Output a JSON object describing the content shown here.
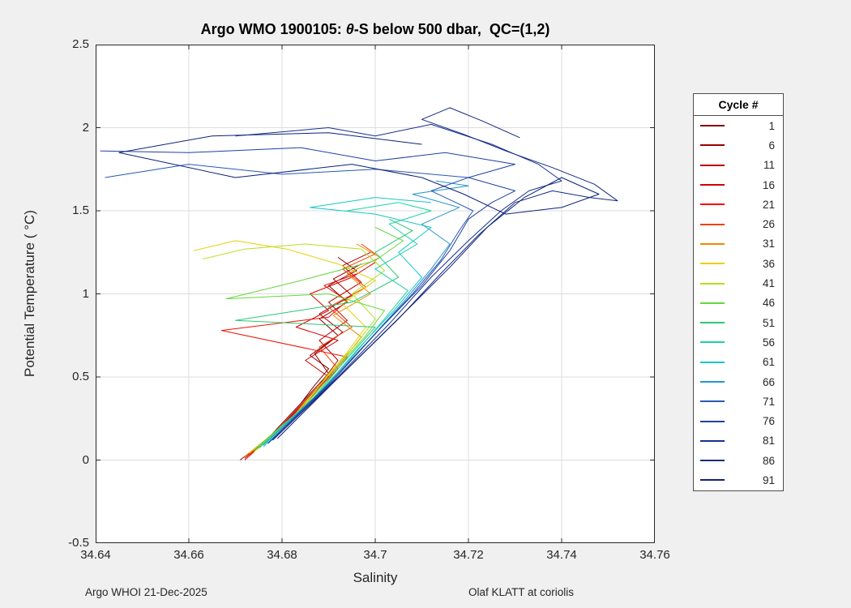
{
  "title": {
    "prefix": "Argo WMO 1900105: ",
    "theta": "θ",
    "suffix": "-S below 500 dbar,  QC=(1,2)"
  },
  "footer": {
    "left": "Argo WHOI 21-Dec-2025",
    "right": "Olaf KLATT at coriolis"
  },
  "chart_data": {
    "type": "line",
    "title": "Argo WMO 1900105: θ-S below 500 dbar,  QC=(1,2)",
    "xlabel": "Salinity",
    "ylabel": "Potential Temperature ( °C)",
    "xlim": [
      34.64,
      34.76
    ],
    "ylim": [
      -0.5,
      2.5
    ],
    "x_ticks": [
      34.64,
      34.66,
      34.68,
      34.7,
      34.72,
      34.74,
      34.76
    ],
    "x_tick_labels": [
      "34.64",
      "34.66",
      "34.68",
      "34.7",
      "34.72",
      "34.74",
      "34.76"
    ],
    "y_ticks": [
      -0.5,
      0,
      0.5,
      1,
      1.5,
      2,
      2.5
    ],
    "y_tick_labels": [
      "-0.5",
      "0",
      "0.5",
      "1",
      "1.5",
      "2",
      "2.5"
    ],
    "grid": true,
    "legend": {
      "title": "Cycle #",
      "position": "right-outside"
    },
    "series": [
      {
        "name": "1",
        "color": "#7f0000",
        "points": [
          [
            34.672,
            0.02
          ],
          [
            34.676,
            0.1
          ],
          [
            34.68,
            0.22
          ],
          [
            34.684,
            0.34
          ],
          [
            34.687,
            0.45
          ],
          [
            34.69,
            0.55
          ],
          [
            34.686,
            0.63
          ],
          [
            34.692,
            0.75
          ],
          [
            34.688,
            0.85
          ],
          [
            34.694,
            0.95
          ],
          [
            34.69,
            1.05
          ],
          [
            34.696,
            1.14
          ],
          [
            34.692,
            1.22
          ]
        ]
      },
      {
        "name": "6",
        "color": "#9b0000",
        "points": [
          [
            34.671,
            0.0
          ],
          [
            34.677,
            0.13
          ],
          [
            34.682,
            0.28
          ],
          [
            34.686,
            0.4
          ],
          [
            34.69,
            0.52
          ],
          [
            34.687,
            0.64
          ],
          [
            34.693,
            0.77
          ],
          [
            34.688,
            0.88
          ],
          [
            34.695,
            0.99
          ],
          [
            34.691,
            1.09
          ],
          [
            34.697,
            1.18
          ]
        ]
      },
      {
        "name": "11",
        "color": "#b70000",
        "points": [
          [
            34.672,
            0.01
          ],
          [
            34.678,
            0.15
          ],
          [
            34.683,
            0.3
          ],
          [
            34.688,
            0.45
          ],
          [
            34.692,
            0.6
          ],
          [
            34.688,
            0.72
          ],
          [
            34.694,
            0.84
          ],
          [
            34.69,
            0.95
          ],
          [
            34.697,
            1.07
          ],
          [
            34.693,
            1.17
          ],
          [
            34.699,
            1.25
          ]
        ]
      },
      {
        "name": "16",
        "color": "#d30000",
        "points": [
          [
            34.672,
            0.02
          ],
          [
            34.679,
            0.18
          ],
          [
            34.685,
            0.35
          ],
          [
            34.69,
            0.5
          ],
          [
            34.685,
            0.6
          ],
          [
            34.692,
            0.72
          ],
          [
            34.683,
            0.8
          ],
          [
            34.69,
            0.9
          ],
          [
            34.686,
            1.0
          ],
          [
            34.695,
            1.1
          ],
          [
            34.7,
            1.19
          ]
        ]
      },
      {
        "name": "21",
        "color": "#ef0f00",
        "points": [
          [
            34.672,
            0.0
          ],
          [
            34.68,
            0.2
          ],
          [
            34.686,
            0.38
          ],
          [
            34.69,
            0.5
          ],
          [
            34.694,
            0.62
          ],
          [
            34.667,
            0.78
          ],
          [
            34.69,
            0.86
          ],
          [
            34.694,
            0.96
          ],
          [
            34.689,
            1.05
          ],
          [
            34.696,
            1.12
          ]
        ]
      },
      {
        "name": "26",
        "color": "#f04000",
        "points": [
          [
            34.673,
            0.03
          ],
          [
            34.681,
            0.22
          ],
          [
            34.687,
            0.4
          ],
          [
            34.692,
            0.55
          ],
          [
            34.688,
            0.68
          ],
          [
            34.695,
            0.8
          ],
          [
            34.69,
            0.92
          ],
          [
            34.698,
            1.04
          ],
          [
            34.693,
            1.15
          ],
          [
            34.7,
            1.24
          ],
          [
            34.697,
            1.3
          ]
        ]
      },
      {
        "name": "31",
        "color": "#ee8a00",
        "points": [
          [
            34.672,
            0.02
          ],
          [
            34.682,
            0.25
          ],
          [
            34.688,
            0.45
          ],
          [
            34.693,
            0.6
          ],
          [
            34.697,
            0.74
          ],
          [
            34.691,
            0.87
          ],
          [
            34.699,
            1.0
          ],
          [
            34.694,
            1.12
          ],
          [
            34.701,
            1.22
          ],
          [
            34.696,
            1.3
          ]
        ]
      },
      {
        "name": "36",
        "color": "#e8d000",
        "points": [
          [
            34.673,
            0.04
          ],
          [
            34.683,
            0.28
          ],
          [
            34.689,
            0.48
          ],
          [
            34.694,
            0.65
          ],
          [
            34.698,
            0.8
          ],
          [
            34.693,
            0.94
          ],
          [
            34.7,
            1.08
          ],
          [
            34.692,
            1.18
          ],
          [
            34.681,
            1.27
          ],
          [
            34.67,
            1.32
          ],
          [
            34.661,
            1.26
          ]
        ]
      },
      {
        "name": "41",
        "color": "#b4e01c",
        "points": [
          [
            34.674,
            0.05
          ],
          [
            34.684,
            0.3
          ],
          [
            34.69,
            0.52
          ],
          [
            34.696,
            0.7
          ],
          [
            34.7,
            0.85
          ],
          [
            34.695,
            1.0
          ],
          [
            34.702,
            1.14
          ],
          [
            34.697,
            1.27
          ],
          [
            34.685,
            1.3
          ],
          [
            34.672,
            1.27
          ],
          [
            34.663,
            1.21
          ]
        ]
      },
      {
        "name": "46",
        "color": "#64d83c",
        "points": [
          [
            34.674,
            0.06
          ],
          [
            34.685,
            0.33
          ],
          [
            34.692,
            0.56
          ],
          [
            34.698,
            0.75
          ],
          [
            34.702,
            0.9
          ],
          [
            34.69,
            1.0
          ],
          [
            34.668,
            0.97
          ],
          [
            34.684,
            1.08
          ],
          [
            34.7,
            1.2
          ],
          [
            34.706,
            1.32
          ],
          [
            34.7,
            1.4
          ]
        ]
      },
      {
        "name": "51",
        "color": "#2cc874",
        "points": [
          [
            34.675,
            0.07
          ],
          [
            34.686,
            0.35
          ],
          [
            34.693,
            0.58
          ],
          [
            34.7,
            0.8
          ],
          [
            34.67,
            0.84
          ],
          [
            34.695,
            0.95
          ],
          [
            34.705,
            1.1
          ],
          [
            34.7,
            1.25
          ],
          [
            34.708,
            1.38
          ],
          [
            34.703,
            1.45
          ]
        ]
      },
      {
        "name": "56",
        "color": "#1cd2a4",
        "points": [
          [
            34.675,
            0.08
          ],
          [
            34.687,
            0.38
          ],
          [
            34.695,
            0.62
          ],
          [
            34.702,
            0.85
          ],
          [
            34.707,
            1.02
          ],
          [
            34.7,
            1.15
          ],
          [
            34.709,
            1.3
          ],
          [
            34.703,
            1.42
          ],
          [
            34.712,
            1.5
          ],
          [
            34.705,
            1.55
          ],
          [
            34.694,
            1.5
          ]
        ]
      },
      {
        "name": "61",
        "color": "#14c8c8",
        "points": [
          [
            34.676,
            0.08
          ],
          [
            34.688,
            0.4
          ],
          [
            34.696,
            0.66
          ],
          [
            34.704,
            0.9
          ],
          [
            34.71,
            1.1
          ],
          [
            34.705,
            1.25
          ],
          [
            34.712,
            1.4
          ],
          [
            34.7,
            1.48
          ],
          [
            34.686,
            1.52
          ],
          [
            34.7,
            1.58
          ],
          [
            34.712,
            1.55
          ]
        ]
      },
      {
        "name": "66",
        "color": "#2496cc",
        "points": [
          [
            34.676,
            0.09
          ],
          [
            34.689,
            0.43
          ],
          [
            34.698,
            0.7
          ],
          [
            34.706,
            0.95
          ],
          [
            34.712,
            1.15
          ],
          [
            34.716,
            1.3
          ],
          [
            34.71,
            1.42
          ],
          [
            34.718,
            1.52
          ],
          [
            34.708,
            1.6
          ],
          [
            34.72,
            1.65
          ],
          [
            34.713,
            1.68
          ]
        ]
      },
      {
        "name": "71",
        "color": "#2858b4",
        "points": [
          [
            34.677,
            0.1
          ],
          [
            34.69,
            0.46
          ],
          [
            34.7,
            0.76
          ],
          [
            34.708,
            1.0
          ],
          [
            34.714,
            1.2
          ],
          [
            34.718,
            1.38
          ],
          [
            34.721,
            1.5
          ],
          [
            34.712,
            1.62
          ],
          [
            34.72,
            1.7
          ],
          [
            34.7,
            1.75
          ],
          [
            34.68,
            1.72
          ],
          [
            34.66,
            1.78
          ],
          [
            34.642,
            1.7
          ]
        ]
      },
      {
        "name": "76",
        "color": "#2040a0",
        "points": [
          [
            34.677,
            0.1
          ],
          [
            34.691,
            0.48
          ],
          [
            34.701,
            0.79
          ],
          [
            34.71,
            1.05
          ],
          [
            34.716,
            1.26
          ],
          [
            34.72,
            1.45
          ],
          [
            34.725,
            1.55
          ],
          [
            34.73,
            1.62
          ],
          [
            34.72,
            1.7
          ],
          [
            34.73,
            1.78
          ],
          [
            34.715,
            1.85
          ],
          [
            34.7,
            1.8
          ],
          [
            34.684,
            1.88
          ],
          [
            34.66,
            1.85
          ],
          [
            34.641,
            1.86
          ]
        ]
      },
      {
        "name": "81",
        "color": "#183090",
        "points": [
          [
            34.678,
            0.12
          ],
          [
            34.692,
            0.5
          ],
          [
            34.703,
            0.82
          ],
          [
            34.712,
            1.1
          ],
          [
            34.72,
            1.32
          ],
          [
            34.727,
            1.5
          ],
          [
            34.733,
            1.62
          ],
          [
            34.74,
            1.68
          ],
          [
            34.735,
            1.78
          ],
          [
            34.725,
            1.9
          ],
          [
            34.712,
            2.02
          ],
          [
            34.7,
            1.95
          ],
          [
            34.69,
            2.0
          ],
          [
            34.67,
            1.95
          ]
        ]
      },
      {
        "name": "86",
        "color": "#122a84",
        "points": [
          [
            34.678,
            0.12
          ],
          [
            34.693,
            0.52
          ],
          [
            34.705,
            0.85
          ],
          [
            34.714,
            1.12
          ],
          [
            34.722,
            1.35
          ],
          [
            34.73,
            1.55
          ],
          [
            34.738,
            1.62
          ],
          [
            34.746,
            1.58
          ],
          [
            34.752,
            1.56
          ],
          [
            34.747,
            1.66
          ],
          [
            34.738,
            1.76
          ],
          [
            34.728,
            1.86
          ],
          [
            34.719,
            1.96
          ],
          [
            34.71,
            2.05
          ],
          [
            34.716,
            2.12
          ],
          [
            34.723,
            2.04
          ],
          [
            34.731,
            1.94
          ]
        ]
      },
      {
        "name": "91",
        "color": "#0c2278",
        "points": [
          [
            34.679,
            0.13
          ],
          [
            34.694,
            0.55
          ],
          [
            34.706,
            0.88
          ],
          [
            34.716,
            1.16
          ],
          [
            34.724,
            1.4
          ],
          [
            34.732,
            1.58
          ],
          [
            34.74,
            1.7
          ],
          [
            34.748,
            1.6
          ],
          [
            34.74,
            1.52
          ],
          [
            34.728,
            1.48
          ],
          [
            34.719,
            1.6
          ],
          [
            34.71,
            1.7
          ],
          [
            34.695,
            1.78
          ],
          [
            34.67,
            1.7
          ],
          [
            34.645,
            1.85
          ],
          [
            34.665,
            1.95
          ],
          [
            34.69,
            1.97
          ],
          [
            34.71,
            1.9
          ]
        ]
      }
    ]
  }
}
